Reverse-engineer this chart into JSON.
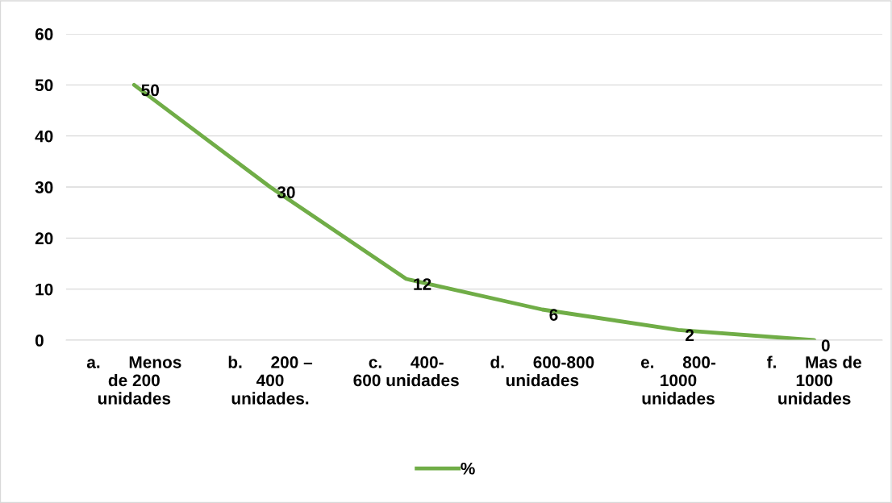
{
  "chart_data": {
    "type": "line",
    "categories": [
      "a.      Menos\nde 200\nunidades",
      "b.      200 –\n400\nunidades.",
      "c.      400-\n600 unidades",
      "d.      600-800\nunidades",
      "e.      800-\n1000\nunidades",
      "f.      Mas de\n1000\nunidades"
    ],
    "series": [
      {
        "name": "%",
        "color": "#70ad47",
        "values": [
          50,
          30,
          12,
          6,
          2,
          0
        ]
      }
    ],
    "ylim": [
      0,
      60
    ],
    "yticks": [
      0,
      10,
      20,
      30,
      40,
      50,
      60
    ],
    "grid": "y",
    "legend": "bottom",
    "data_labels": true,
    "marker": "none",
    "line_style": "solid"
  }
}
